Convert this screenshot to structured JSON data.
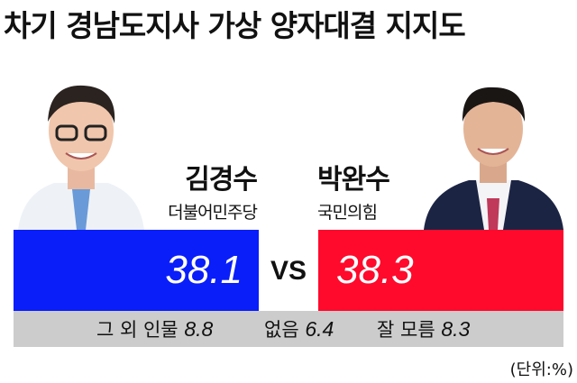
{
  "title": "차기 경남도지사 가상 양자대결 지지도",
  "candidates": [
    {
      "name": "김경수",
      "party": "더불어민주당",
      "value_label": "38.1",
      "color": "#0a1efa"
    },
    {
      "name": "박완수",
      "party": "국민의힘",
      "value_label": "38.3",
      "color": "#ff0a2c"
    }
  ],
  "vs_label": "VS",
  "others": [
    {
      "label": "그 외 인물",
      "value_label": "8.8"
    },
    {
      "label": "없음",
      "value_label": "6.4"
    },
    {
      "label": "잘 모름",
      "value_label": "8.3"
    }
  ],
  "unit": "(단위:%)",
  "chart_data": {
    "type": "bar",
    "title": "차기 경남도지사 가상 양자대결 지지도",
    "categories": [
      "김경수",
      "박완수",
      "그 외 인물",
      "없음",
      "잘 모름"
    ],
    "values": [
      38.1,
      38.3,
      8.8,
      6.4,
      8.3
    ],
    "unit": "%",
    "colors": {
      "김경수": "#0a1efa",
      "박완수": "#ff0a2c",
      "others": "#cccccc"
    }
  }
}
